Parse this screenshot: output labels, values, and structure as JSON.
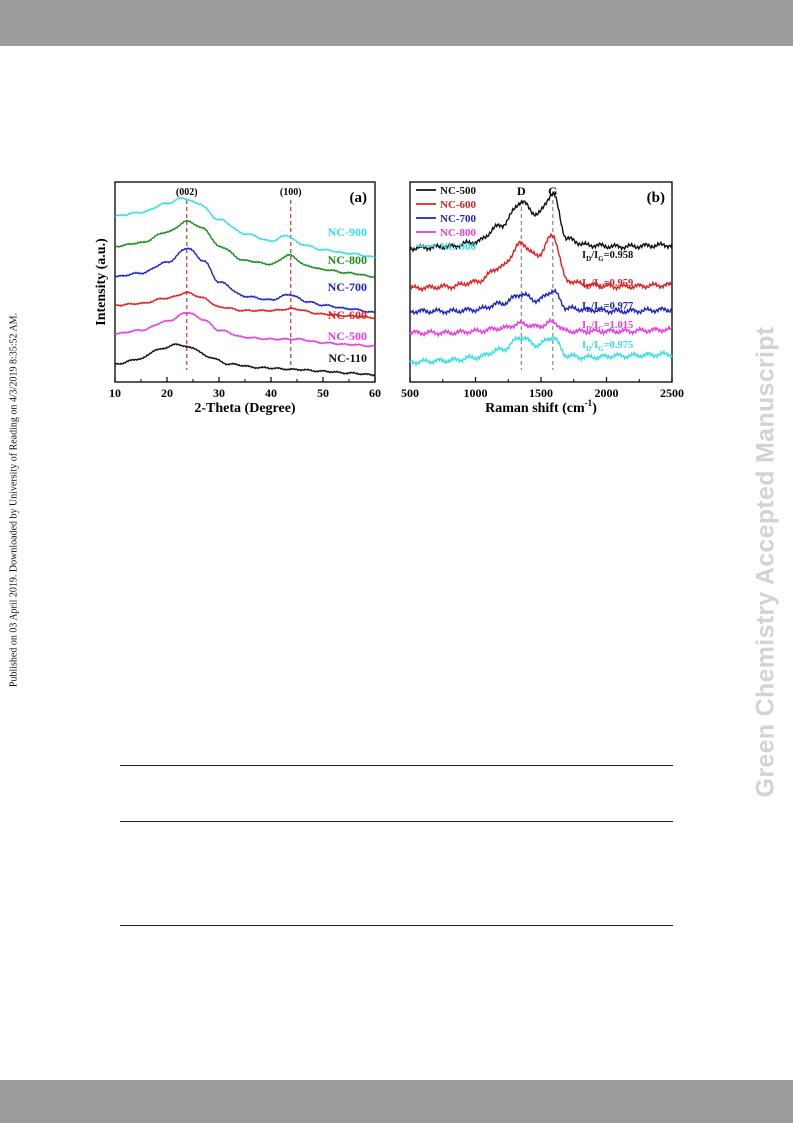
{
  "page": {
    "side_note": "Published on 03 April 2019. Downloaded by University of Reading on 4/3/2019 8:35:52 AM.",
    "watermark": "Green Chemistry Accepted Manuscript"
  },
  "figure": {
    "chart_data": [
      {
        "type": "line",
        "panel_label": "(a)",
        "xlabel": "2-Theta (Degree)",
        "ylabel": "Intensity (a.u.)",
        "xlim": [
          10,
          60
        ],
        "xticks": [
          10,
          20,
          30,
          40,
          50,
          60
        ],
        "grid": false,
        "annotations": [
          {
            "text": "(002)",
            "x": 23.8
          },
          {
            "text": "(100)",
            "x": 43.8
          }
        ],
        "reference_lines_x": [
          23.8,
          43.8
        ],
        "series": [
          {
            "name": "NC-900",
            "color": "#33e0e6",
            "x": [
              10,
              15,
              20,
              23,
              26,
              30,
              35,
              40,
              43,
              46,
              50,
              55,
              60
            ],
            "y": [
              0.93,
              0.95,
              1.0,
              1.03,
              1.0,
              0.91,
              0.83,
              0.79,
              0.82,
              0.77,
              0.74,
              0.72,
              0.7
            ]
          },
          {
            "name": "NC-800",
            "color": "#1a8a1a",
            "x": [
              10,
              15,
              20,
              24,
              27,
              30,
              35,
              40,
              43.5,
              47,
              50,
              55,
              60
            ],
            "y": [
              0.76,
              0.78,
              0.84,
              0.9,
              0.86,
              0.76,
              0.68,
              0.66,
              0.71,
              0.65,
              0.63,
              0.61,
              0.59
            ]
          },
          {
            "name": "NC-700",
            "color": "#1c22cc",
            "x": [
              10,
              15,
              20,
              24,
              27,
              30,
              35,
              40,
              43.5,
              47,
              50,
              55,
              60
            ],
            "y": [
              0.59,
              0.61,
              0.67,
              0.75,
              0.68,
              0.56,
              0.48,
              0.46,
              0.49,
              0.45,
              0.43,
              0.41,
              0.39
            ]
          },
          {
            "name": "NC-600",
            "color": "#e02020",
            "x": [
              10,
              15,
              20,
              24,
              27,
              30,
              35,
              40,
              44,
              50,
              55,
              60
            ],
            "y": [
              0.43,
              0.44,
              0.47,
              0.5,
              0.47,
              0.42,
              0.4,
              0.4,
              0.41,
              0.38,
              0.37,
              0.36
            ]
          },
          {
            "name": "NC-500",
            "color": "#e63ce0",
            "x": [
              10,
              15,
              20,
              24,
              27,
              30,
              35,
              40,
              45,
              50,
              55,
              60
            ],
            "y": [
              0.27,
              0.29,
              0.34,
              0.39,
              0.35,
              0.29,
              0.25,
              0.24,
              0.24,
              0.22,
              0.21,
              0.2
            ]
          },
          {
            "name": "NC-110",
            "color": "#111111",
            "x": [
              10,
              15,
              18,
              22,
              25,
              28,
              32,
              38,
              45,
              50,
              55,
              60
            ],
            "y": [
              0.1,
              0.13,
              0.18,
              0.21,
              0.19,
              0.14,
              0.1,
              0.08,
              0.07,
              0.06,
              0.05,
              0.04
            ]
          }
        ],
        "legend": "inline labels right"
      },
      {
        "type": "line",
        "panel_label": "(b)",
        "xlabel": "Raman shift (cm",
        "xlabel_sup": "-1",
        "xlabel_end": ")",
        "ylabel": "",
        "xlim": [
          500,
          2500
        ],
        "xticks": [
          500,
          1000,
          1500,
          2000,
          2500
        ],
        "grid": false,
        "annotations": [
          {
            "text": "D",
            "x": 1350
          },
          {
            "text": "G",
            "x": 1590
          }
        ],
        "reference_lines_x": [
          1350,
          1590
        ],
        "ratios": [
          {
            "sub": "D",
            "sub2": "G",
            "value": "=0.958",
            "color": "#111111"
          },
          {
            "sub": "D",
            "sub2": "G",
            "value": "=0.959",
            "color": "#e02020"
          },
          {
            "sub": "D",
            "sub2": "G",
            "value": "=0.977",
            "color": "#1c22cc"
          },
          {
            "sub": "D",
            "sub2": "G",
            "value": "=1.015",
            "color": "#e63ce0"
          },
          {
            "sub": "D",
            "sub2": "G",
            "value": "=0.975",
            "color": "#33e0e6"
          }
        ],
        "series": [
          {
            "name": "NC-500",
            "color": "#111111",
            "x": [
              500,
              800,
              1000,
              1200,
              1350,
              1470,
              1590,
              1700,
              1850,
              2100,
              2500
            ],
            "y": [
              0.82,
              0.83,
              0.86,
              0.97,
              1.12,
              1.04,
              1.17,
              0.88,
              0.84,
              0.83,
              0.84
            ]
          },
          {
            "name": "NC-600",
            "color": "#e02020",
            "x": [
              500,
              800,
              1000,
              1200,
              1350,
              1470,
              1590,
              1700,
              1850,
              2100,
              2500
            ],
            "y": [
              0.56,
              0.57,
              0.6,
              0.7,
              0.85,
              0.77,
              0.9,
              0.61,
              0.58,
              0.57,
              0.58
            ]
          },
          {
            "name": "NC-700",
            "color": "#1c22cc",
            "x": [
              500,
              800,
              1000,
              1200,
              1350,
              1470,
              1590,
              1700,
              1850,
              2100,
              2500
            ],
            "y": [
              0.41,
              0.41,
              0.42,
              0.46,
              0.52,
              0.48,
              0.54,
              0.43,
              0.42,
              0.41,
              0.42
            ]
          },
          {
            "name": "NC-800",
            "color": "#e63ce0",
            "x": [
              500,
              800,
              1000,
              1200,
              1350,
              1470,
              1590,
              1700,
              1850,
              2100,
              2500
            ],
            "y": [
              0.27,
              0.27,
              0.28,
              0.3,
              0.33,
              0.31,
              0.34,
              0.28,
              0.28,
              0.28,
              0.29
            ]
          },
          {
            "name": "NC-900",
            "color": "#33e0e6",
            "x": [
              500,
              800,
              1000,
              1200,
              1350,
              1470,
              1590,
              1700,
              1850,
              2100,
              2500
            ],
            "y": [
              0.08,
              0.09,
              0.11,
              0.16,
              0.24,
              0.19,
              0.24,
              0.12,
              0.11,
              0.12,
              0.13
            ]
          }
        ],
        "legend": "top-left"
      }
    ]
  }
}
